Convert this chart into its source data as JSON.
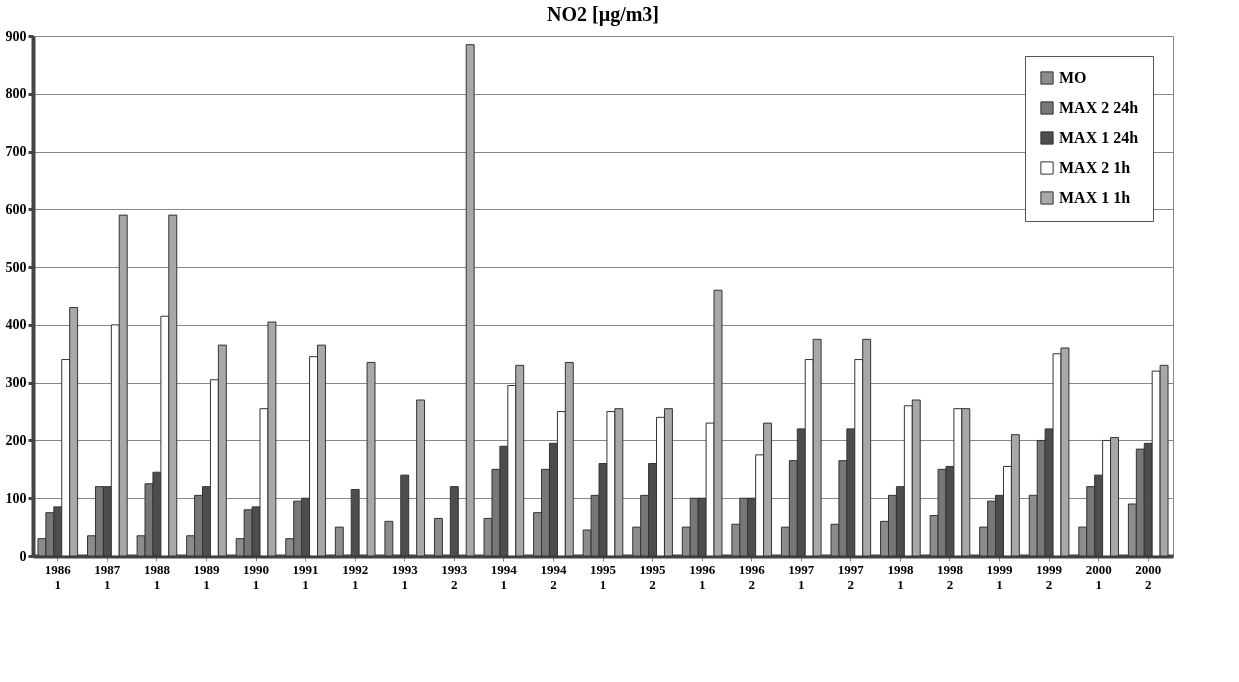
{
  "chart_data": {
    "type": "bar",
    "title": "NO2 [µg/m3]",
    "categories": [
      "1986 1",
      "1987 1",
      "1988 1",
      "1989 1",
      "1990 1",
      "1991 1",
      "1992 1",
      "1993 1",
      "1993 2",
      "1994 1",
      "1994 2",
      "1995 1",
      "1995 2",
      "1996 1",
      "1996 2",
      "1997 1",
      "1997 2",
      "1998 1",
      "1998 2",
      "1999 1",
      "1999 2",
      "2000 1",
      "2000 2"
    ],
    "series": [
      {
        "name": "MO",
        "color": "#8c8c8c",
        "values": [
          30,
          35,
          35,
          35,
          30,
          30,
          50,
          60,
          65,
          65,
          75,
          45,
          50,
          50,
          55,
          50,
          55,
          60,
          70,
          50,
          105,
          50,
          90
        ]
      },
      {
        "name": "MAX 2 24h",
        "color": "#777777",
        "values": [
          75,
          120,
          125,
          105,
          80,
          95,
          null,
          null,
          null,
          150,
          150,
          105,
          105,
          100,
          100,
          165,
          165,
          105,
          150,
          95,
          200,
          120,
          185
        ]
      },
      {
        "name": "MAX 1 24h",
        "color": "#4d4d4d",
        "values": [
          85,
          120,
          145,
          120,
          85,
          100,
          115,
          140,
          120,
          190,
          195,
          160,
          160,
          100,
          100,
          220,
          220,
          120,
          155,
          105,
          220,
          140,
          195
        ]
      },
      {
        "name": "MAX 2 1h",
        "color": "#ffffff",
        "values": [
          340,
          400,
          415,
          305,
          255,
          345,
          null,
          null,
          null,
          295,
          250,
          250,
          240,
          230,
          175,
          340,
          340,
          260,
          255,
          155,
          350,
          200,
          320
        ]
      },
      {
        "name": "MAX 1 1h",
        "color": "#a8a8a8",
        "values": [
          430,
          590,
          590,
          365,
          405,
          365,
          335,
          270,
          885,
          330,
          335,
          255,
          255,
          460,
          230,
          375,
          375,
          270,
          255,
          210,
          360,
          205,
          330
        ]
      }
    ],
    "ylim": [
      0,
      900
    ],
    "yticks": [
      0,
      100,
      200,
      300,
      400,
      500,
      600,
      700,
      800,
      900
    ],
    "grid": "y",
    "legend": "top right"
  }
}
